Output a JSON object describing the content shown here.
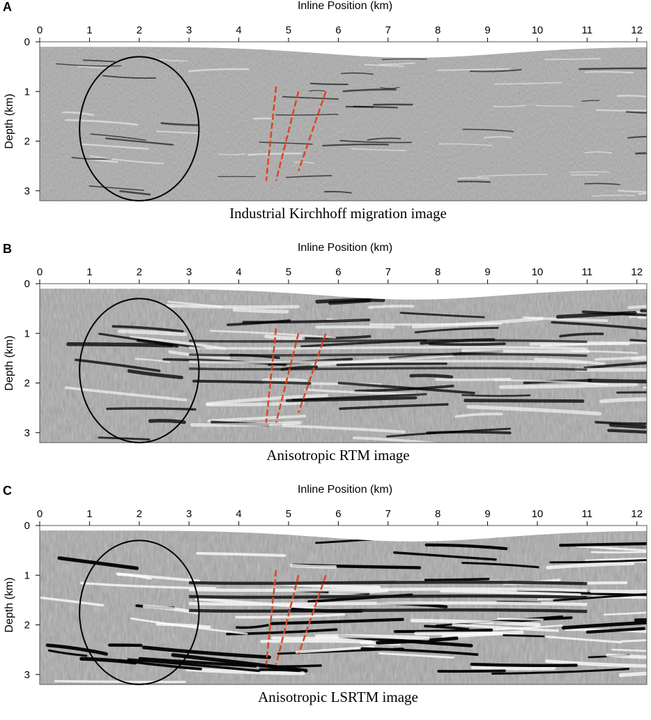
{
  "figure": {
    "panels": [
      {
        "letter": "A",
        "x_axis_title": "Inline Position (km)",
        "y_axis_title": "Depth (km)",
        "x_ticks": [
          "0",
          "1",
          "2",
          "3",
          "4",
          "5",
          "6",
          "7",
          "8",
          "9",
          "10",
          "11",
          "12"
        ],
        "y_ticks": [
          "0",
          "1",
          "2",
          "3"
        ],
        "caption": "Industrial Kirchhoff migration image",
        "style": "kirchhoff"
      },
      {
        "letter": "B",
        "x_axis_title": "Inline Position (km)",
        "y_axis_title": "Depth (km)",
        "x_ticks": [
          "0",
          "1",
          "2",
          "3",
          "4",
          "5",
          "6",
          "7",
          "8",
          "9",
          "10",
          "11",
          "12"
        ],
        "y_ticks": [
          "0",
          "1",
          "2",
          "3"
        ],
        "caption": "Anisotropic RTM image",
        "style": "rtm"
      },
      {
        "letter": "C",
        "x_axis_title": "Inline Position (km)",
        "y_axis_title": "Depth (km)",
        "x_ticks": [
          "0",
          "1",
          "2",
          "3",
          "4",
          "5",
          "6",
          "7",
          "8",
          "9",
          "10",
          "11",
          "12"
        ],
        "y_ticks": [
          "0",
          "1",
          "2",
          "3"
        ],
        "caption": "Anisotropic LSRTM image",
        "style": "lsrtm"
      }
    ],
    "x_range_km": [
      0,
      12.2
    ],
    "y_range_km": [
      0,
      3.2
    ],
    "annotations": {
      "ellipse_center_km": [
        2.0,
        1.75
      ],
      "ellipse_radii_km": [
        1.2,
        1.45
      ],
      "ellipse_color": "#000000",
      "fault_lines_km": [
        [
          [
            4.75,
            0.9
          ],
          [
            4.55,
            2.8
          ]
        ],
        [
          [
            5.2,
            1.0
          ],
          [
            4.75,
            2.8
          ]
        ],
        [
          [
            5.75,
            1.0
          ],
          [
            5.2,
            2.6
          ]
        ]
      ],
      "fault_color": "#e0441c"
    }
  }
}
